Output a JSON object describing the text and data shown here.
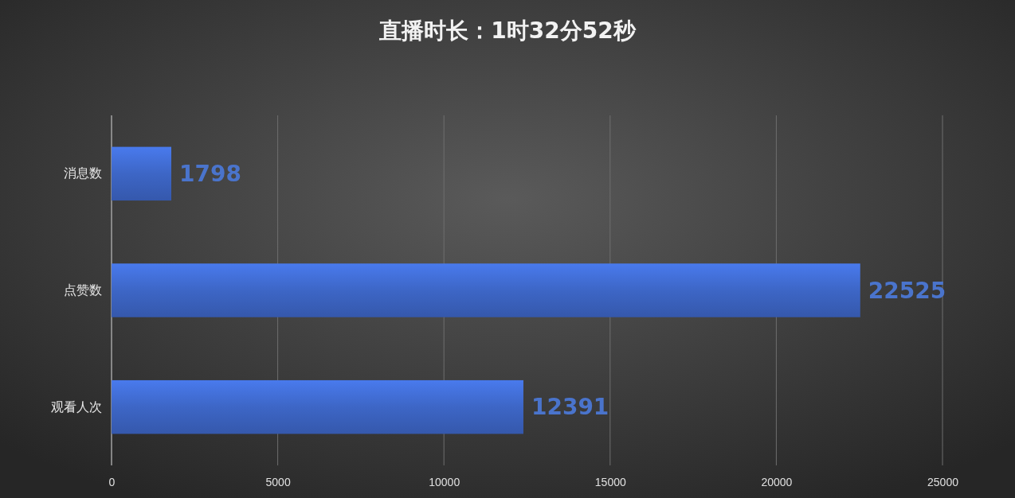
{
  "chart_data": {
    "type": "bar",
    "orientation": "horizontal",
    "title": "直播时长：1时32分52秒",
    "categories": [
      "消息数",
      "点赞数",
      "观看人次"
    ],
    "values": [
      1798,
      22525,
      12391
    ],
    "color": "#3d66c6",
    "xlim": [
      0,
      25000
    ],
    "xticks": [
      0,
      5000,
      10000,
      15000,
      20000,
      25000
    ],
    "grid": "x",
    "data_labels": true
  }
}
